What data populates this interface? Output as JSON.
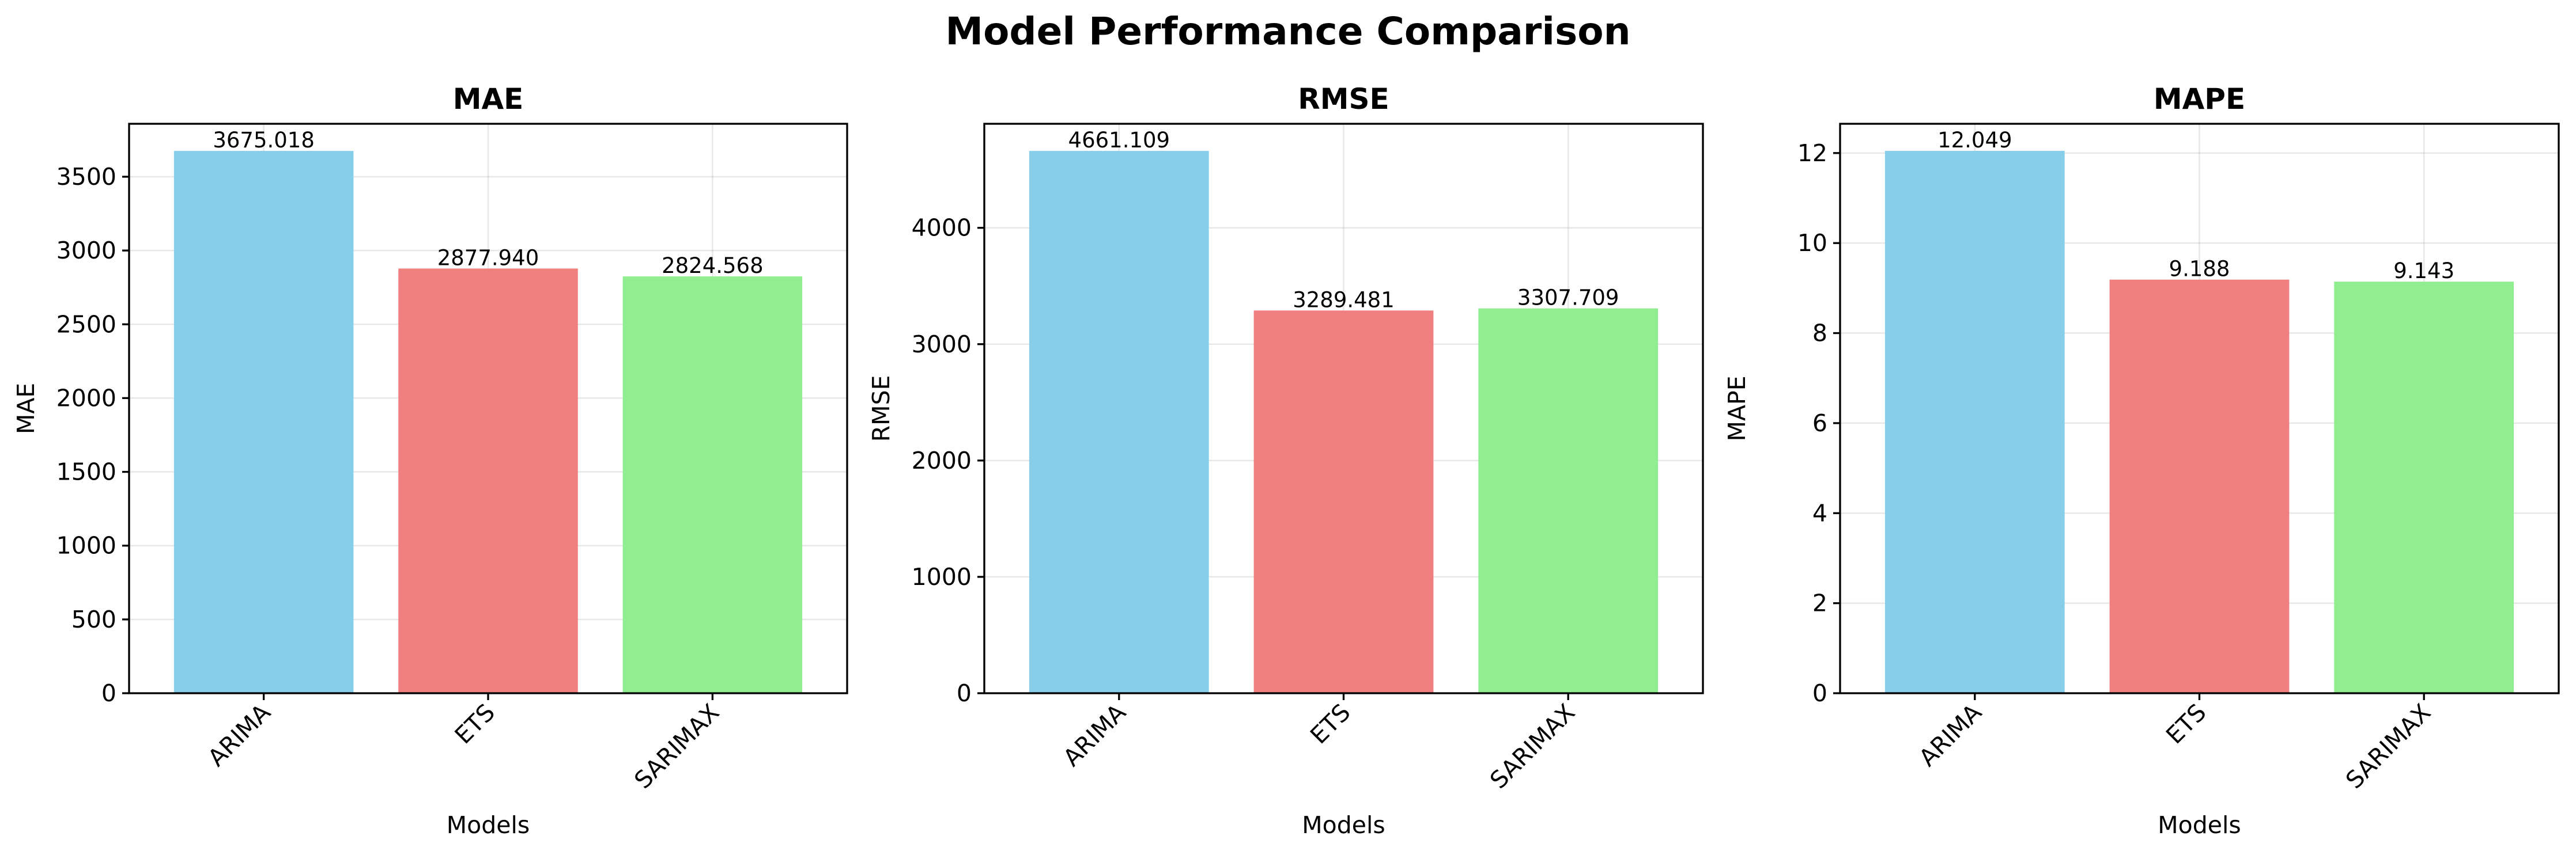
{
  "figure_title": "Model Performance Comparison",
  "colors": {
    "ARIMA": "#87CEEB",
    "ETS": "#F08080",
    "SARIMAX": "#90EE90"
  },
  "chart_data": [
    {
      "type": "bar",
      "title": "MAE",
      "xlabel": "Models",
      "ylabel": "MAE",
      "categories": [
        "ARIMA",
        "ETS",
        "SARIMAX"
      ],
      "values": [
        3675.018,
        2877.94,
        2824.568
      ],
      "value_labels": [
        "3675.018",
        "2877.940",
        "2824.568"
      ],
      "ylim": [
        0,
        3858.8
      ],
      "yticks": [
        0,
        500,
        1000,
        1500,
        2000,
        2500,
        3000,
        3500
      ],
      "grid": true
    },
    {
      "type": "bar",
      "title": "RMSE",
      "xlabel": "Models",
      "ylabel": "RMSE",
      "categories": [
        "ARIMA",
        "ETS",
        "SARIMAX"
      ],
      "values": [
        4661.109,
        3289.481,
        3307.709
      ],
      "value_labels": [
        "4661.109",
        "3289.481",
        "3307.709"
      ],
      "ylim": [
        0,
        4894.2
      ],
      "yticks": [
        0,
        1000,
        2000,
        3000,
        4000
      ],
      "grid": true
    },
    {
      "type": "bar",
      "title": "MAPE",
      "xlabel": "Models",
      "ylabel": "MAPE",
      "categories": [
        "ARIMA",
        "ETS",
        "SARIMAX"
      ],
      "values": [
        12.049,
        9.188,
        9.143
      ],
      "value_labels": [
        "12.049",
        "9.188",
        "9.143"
      ],
      "ylim": [
        0,
        12.65
      ],
      "yticks": [
        0,
        2,
        4,
        6,
        8,
        10,
        12
      ],
      "grid": true
    }
  ]
}
